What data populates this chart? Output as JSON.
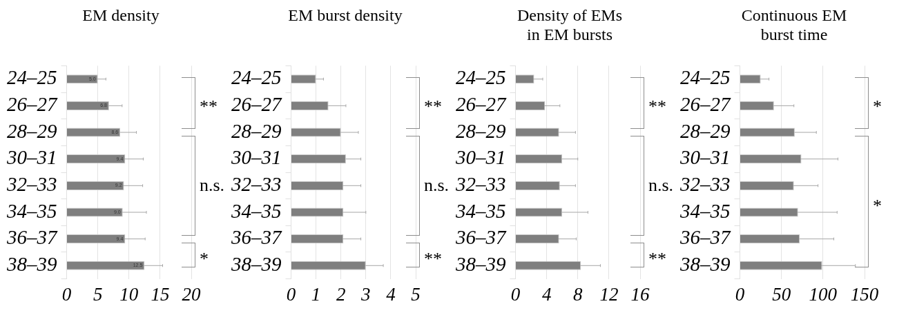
{
  "chart_data": [
    {
      "type": "bar",
      "orientation": "horizontal",
      "title": "EM density",
      "categories": [
        "24–25",
        "26–27",
        "28–29",
        "30–31",
        "32–33",
        "34–35",
        "36–37",
        "38–39"
      ],
      "values": [
        5.0,
        6.8,
        8.6,
        9.4,
        9.2,
        9.0,
        9.4,
        12.5
      ],
      "errors": [
        1.3,
        2.1,
        2.6,
        2.9,
        3.0,
        3.8,
        3.2,
        2.9
      ],
      "color": "#7f7f7f",
      "value_labels": [
        "5.0",
        "6.8",
        "8.6",
        "9.4",
        "9.2",
        "9.0",
        "9.4",
        "12.5"
      ],
      "xlim": [
        0,
        20
      ],
      "xticks": [
        0,
        5,
        10,
        15,
        20
      ],
      "grid": "x",
      "annotations": [
        "**",
        "n.s.",
        "*"
      ]
    },
    {
      "type": "bar",
      "orientation": "horizontal",
      "title": "EM burst density",
      "categories": [
        "24–25",
        "26–27",
        "28–29",
        "30–31",
        "32–33",
        "34–35",
        "36–37",
        "38–39"
      ],
      "values": [
        1.0,
        1.5,
        2.0,
        2.2,
        2.1,
        2.1,
        2.1,
        3.0
      ],
      "errors": [
        0.3,
        0.7,
        0.7,
        0.6,
        0.7,
        0.9,
        0.7,
        0.7
      ],
      "color": "#7f7f7f",
      "xlim": [
        0,
        5
      ],
      "xticks": [
        0,
        1,
        2,
        3,
        4,
        5
      ],
      "grid": "x",
      "annotations": [
        "**",
        "n.s.",
        "**"
      ]
    },
    {
      "type": "bar",
      "orientation": "horizontal",
      "title": "Density of EMs\nin EM bursts",
      "categories": [
        "24–25",
        "26–27",
        "28–29",
        "30–31",
        "32–33",
        "34–35",
        "36–37",
        "38–39"
      ],
      "values": [
        2.4,
        3.8,
        5.6,
        6.0,
        5.7,
        6.0,
        5.6,
        8.4
      ],
      "errors": [
        1.1,
        1.9,
        2.1,
        2.0,
        2.0,
        3.3,
        2.2,
        2.5
      ],
      "color": "#7f7f7f",
      "xlim": [
        0,
        16
      ],
      "xticks": [
        0,
        4,
        8,
        12,
        16
      ],
      "grid": "x",
      "annotations": [
        "**",
        "n.s.",
        "**"
      ]
    },
    {
      "type": "bar",
      "orientation": "horizontal",
      "title": "Continuous EM\nburst time",
      "categories": [
        "24–25",
        "26–27",
        "28–29",
        "30–31",
        "32–33",
        "34–35",
        "36–37",
        "38–39"
      ],
      "values": [
        25,
        41,
        66,
        74,
        65,
        70,
        72,
        99
      ],
      "errors": [
        10,
        24,
        26,
        44,
        29,
        47,
        41,
        40
      ],
      "color": "#7f7f7f",
      "xlim": [
        0,
        150
      ],
      "xticks": [
        0,
        50,
        100,
        150
      ],
      "grid": "x",
      "annotations": [
        "*",
        "*"
      ]
    }
  ]
}
